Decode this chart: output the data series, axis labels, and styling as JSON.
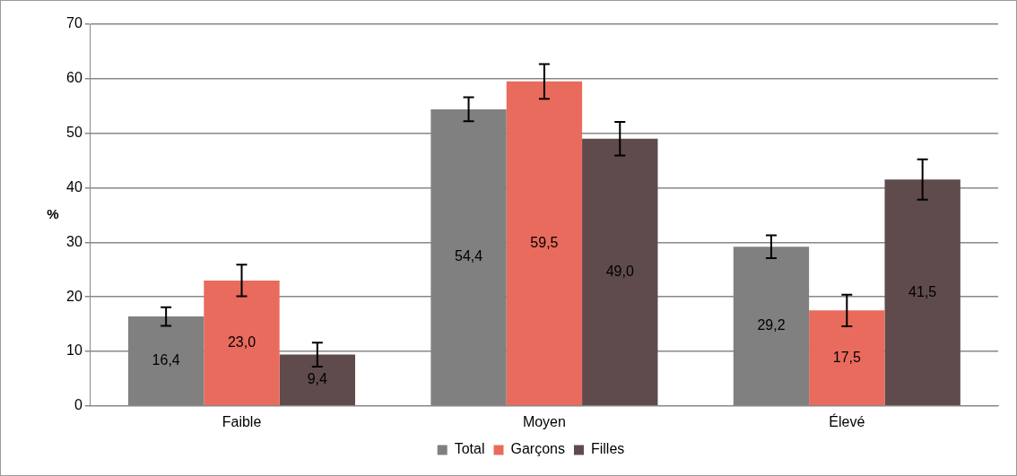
{
  "chart_data": {
    "type": "bar",
    "ylabel": "%",
    "categories": [
      "Faible",
      "Moyen",
      "Élevé"
    ],
    "series": [
      {
        "name": "Total",
        "color": "#808080",
        "values": [
          16.4,
          54.4,
          29.2
        ],
        "value_labels": [
          "16,4",
          "54,4",
          "29,2"
        ],
        "errors": [
          1.7,
          2.2,
          2.1
        ]
      },
      {
        "name": "Garçons",
        "color": "#e96b5d",
        "values": [
          23.0,
          59.5,
          17.5
        ],
        "value_labels": [
          "23,0",
          "59,5",
          "17,5"
        ],
        "errors": [
          2.9,
          3.2,
          2.9
        ]
      },
      {
        "name": "Filles",
        "color": "#5f4a4c",
        "values": [
          9.4,
          49.0,
          41.5
        ],
        "value_labels": [
          "9,4",
          "49,0",
          "41,5"
        ],
        "errors": [
          2.2,
          3.1,
          3.7
        ]
      }
    ],
    "ylim": [
      0,
      70
    ],
    "yticks": [
      0,
      10,
      20,
      30,
      40,
      50,
      60,
      70
    ],
    "grid": "y",
    "legend": "bottom"
  }
}
